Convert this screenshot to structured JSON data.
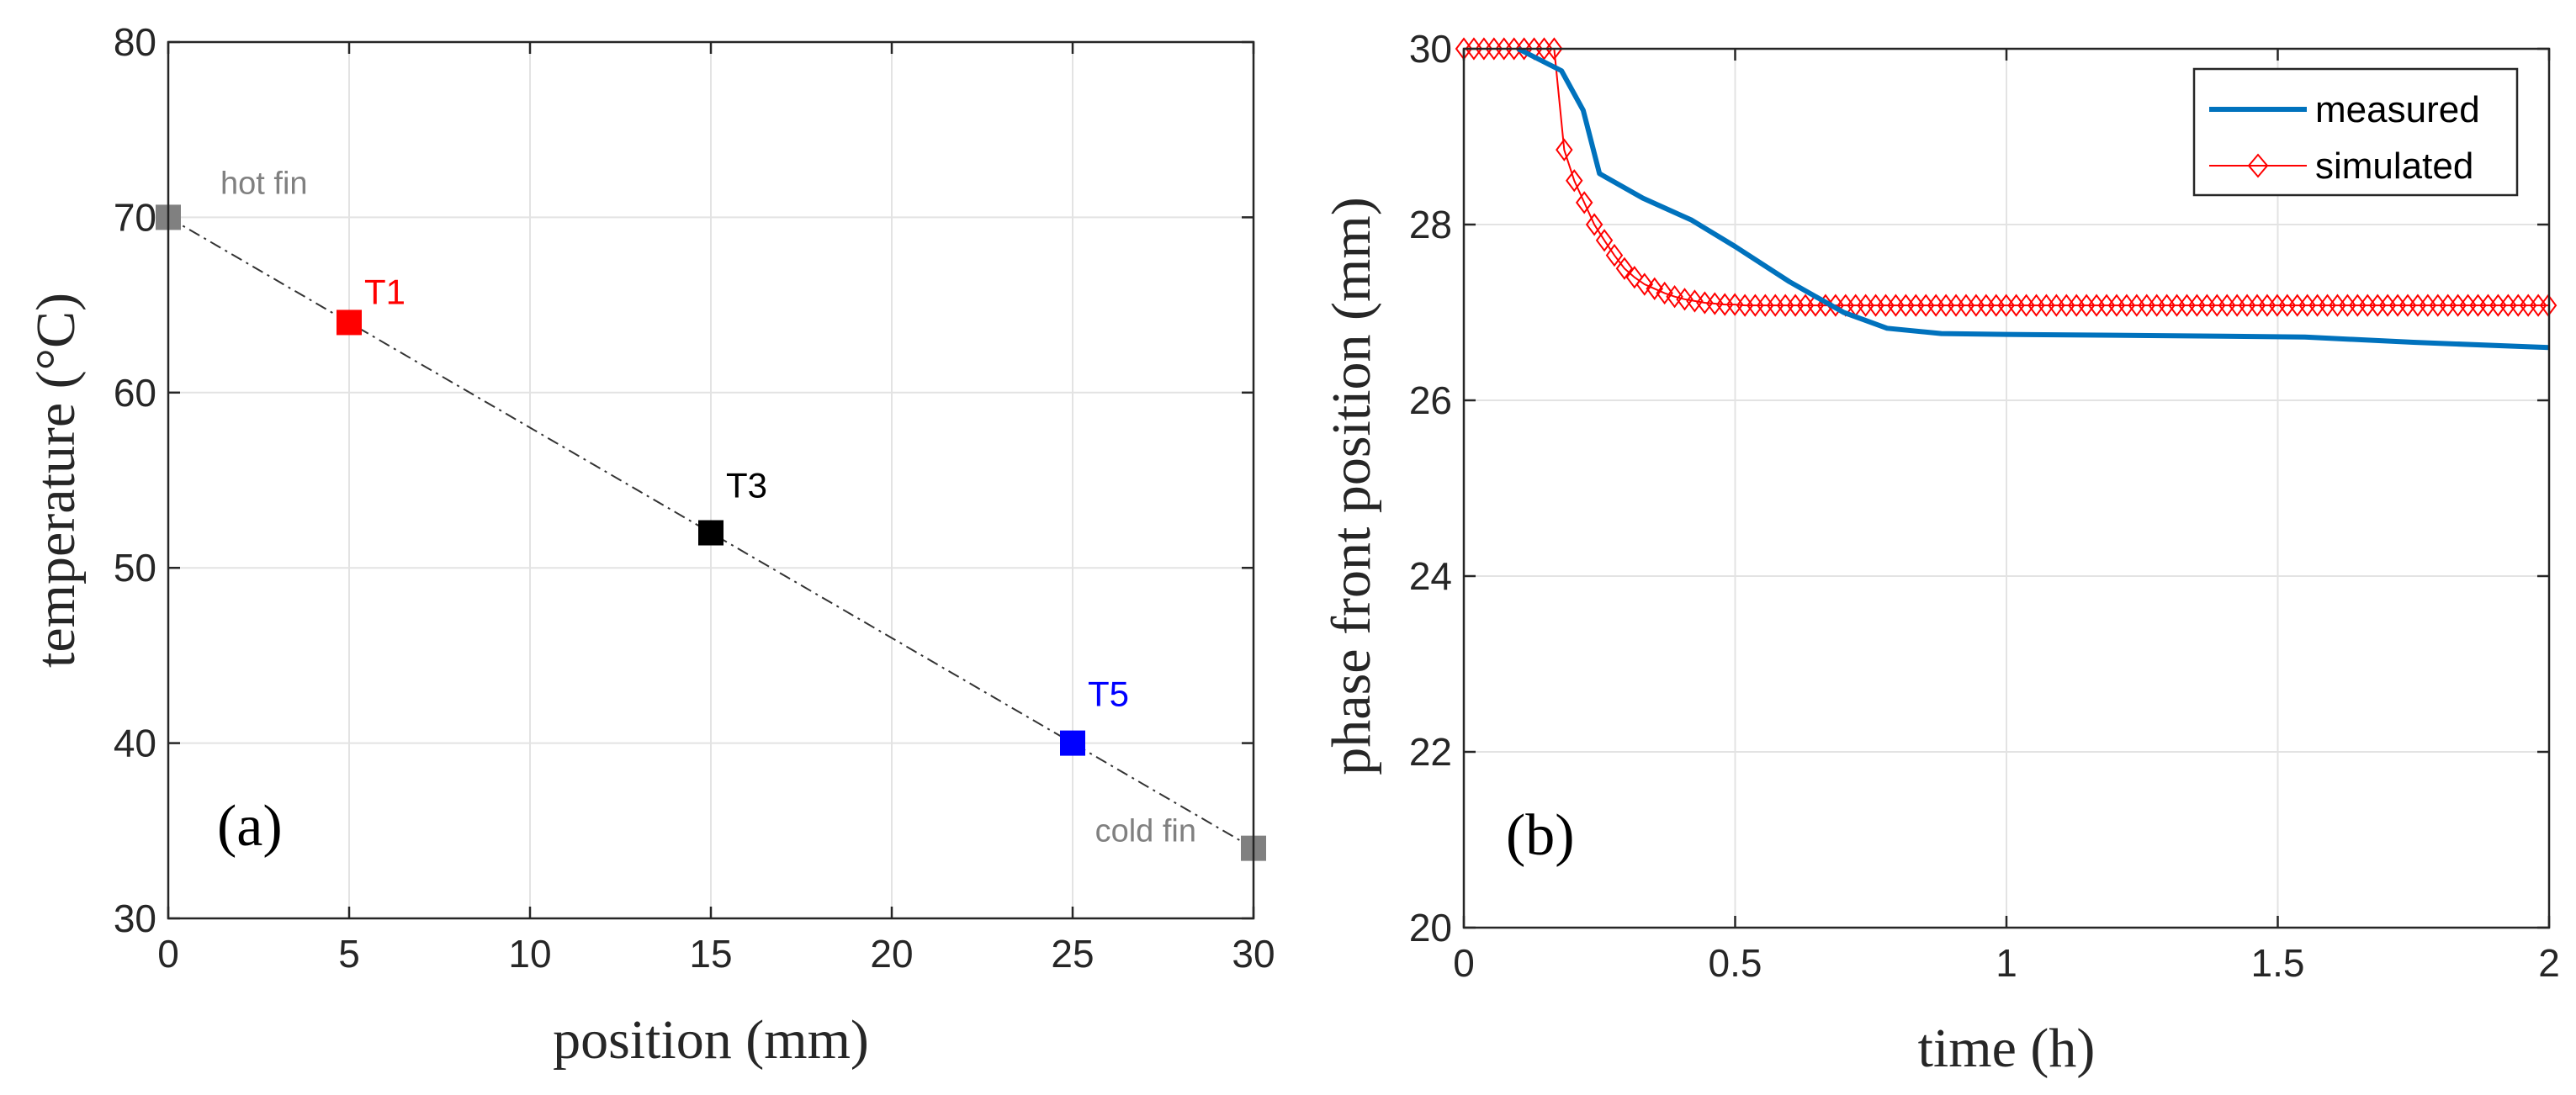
{
  "chart_data": [
    {
      "id": "a",
      "type": "scatter",
      "panel_label": "(a)",
      "xlabel": "position (mm)",
      "ylabel": "temperature (°C)",
      "xlim": [
        0,
        30
      ],
      "ylim": [
        30,
        80
      ],
      "xticks": [
        "0",
        "5",
        "10",
        "15",
        "20",
        "25",
        "30"
      ],
      "yticks": [
        "30",
        "40",
        "50",
        "60",
        "70",
        "80"
      ],
      "grid": true,
      "fit_line": {
        "x": [
          0,
          30
        ],
        "y": [
          70,
          34
        ],
        "style": "dash-dot",
        "color": "#333333"
      },
      "points": [
        {
          "x": 0,
          "y": 70,
          "label": "hot fin",
          "color": "#808080"
        },
        {
          "x": 5,
          "y": 64,
          "label": "T1",
          "color": "#ff0000"
        },
        {
          "x": 15,
          "y": 52,
          "label": "T3",
          "color": "#000000"
        },
        {
          "x": 25,
          "y": 40,
          "label": "T5",
          "color": "#0000ff"
        },
        {
          "x": 30,
          "y": 34,
          "label": "cold fin",
          "color": "#808080"
        }
      ]
    },
    {
      "id": "b",
      "type": "line",
      "panel_label": "(b)",
      "xlabel": "time (h)",
      "ylabel": "phase front position (mm)",
      "xlim": [
        0,
        2
      ],
      "ylim": [
        20,
        30
      ],
      "xticks": [
        "0",
        "0.5",
        "1",
        "1.5",
        "2"
      ],
      "yticks": [
        "20",
        "22",
        "24",
        "26",
        "28",
        "30"
      ],
      "grid": true,
      "legend_position": "top-right",
      "series": [
        {
          "name": "measured",
          "color": "#0072bd",
          "marker": "none",
          "x": [
            0.1,
            0.18,
            0.22,
            0.25,
            0.33,
            0.42,
            0.5,
            0.6,
            0.7,
            0.78,
            0.88,
            1.0,
            1.2,
            1.4,
            1.55,
            1.75,
            2.0
          ],
          "y": [
            30.0,
            29.75,
            29.3,
            28.58,
            28.3,
            28.05,
            27.75,
            27.35,
            27.0,
            26.82,
            26.76,
            26.75,
            26.74,
            26.73,
            26.72,
            26.66,
            26.6
          ]
        },
        {
          "name": "simulated",
          "color": "#ff0000",
          "marker": "diamond",
          "x": [
            0.0,
            0.0185,
            0.037,
            0.0555,
            0.074,
            0.0925,
            0.111,
            0.1295,
            0.148,
            0.1665,
            0.185,
            0.2035,
            0.222,
            0.2405,
            0.259,
            0.2775,
            0.296,
            0.3145,
            0.333,
            0.3515,
            0.37,
            0.3885,
            0.407,
            0.4255,
            0.444,
            0.4625,
            0.481,
            0.4995,
            0.518
          ],
          "y": [
            30.0,
            30.0,
            30.0,
            30.0,
            30.0,
            30.0,
            30.0,
            30.0,
            30.0,
            30.0,
            28.85,
            28.5,
            28.25,
            28.0,
            27.82,
            27.65,
            27.5,
            27.4,
            27.32,
            27.27,
            27.22,
            27.18,
            27.15,
            27.13,
            27.11,
            27.1,
            27.09,
            27.09,
            27.08
          ],
          "plateau": {
            "x_start": 0.537,
            "x_end": 2.0,
            "step": 0.0185,
            "y": 27.08
          }
        }
      ]
    }
  ]
}
